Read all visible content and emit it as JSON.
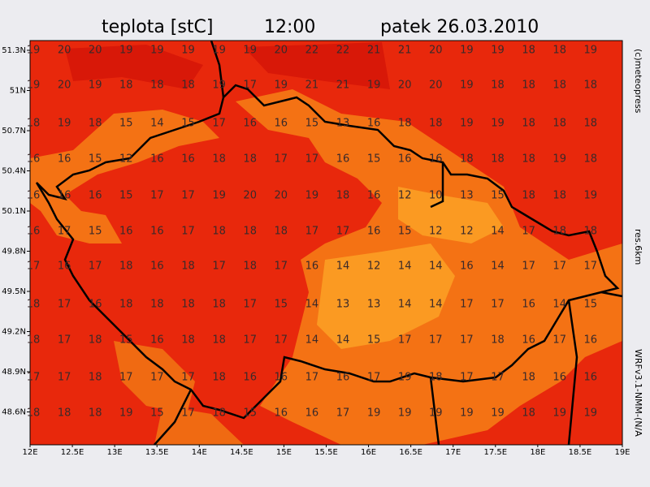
{
  "title": {
    "variable": "teplota [stC]",
    "time": "12:00",
    "date": "patek 26.03.2010"
  },
  "map": {
    "lat_labels": [
      "51.3N",
      "51N",
      "50.7N",
      "50.4N",
      "50.1N",
      "49.8N",
      "49.5N",
      "49.2N",
      "48.9N",
      "48.6N"
    ],
    "lon_labels": [
      "12E",
      "12.5E",
      "13E",
      "13.5E",
      "14E",
      "14.5E",
      "15E",
      "15.5E",
      "16E",
      "16.5E",
      "17E",
      "17.5E",
      "18E",
      "18.5E",
      "19E"
    ],
    "values": [
      [
        19,
        20,
        20,
        19,
        19,
        19,
        19,
        19,
        20,
        22,
        22,
        21,
        21,
        20,
        19,
        19,
        18,
        18,
        19
      ],
      [
        19,
        20,
        19,
        18,
        18,
        18,
        19,
        17,
        19,
        21,
        21,
        19,
        20,
        20,
        19,
        18,
        18,
        18,
        18
      ],
      [
        18,
        19,
        18,
        15,
        14,
        15,
        17,
        16,
        16,
        15,
        13,
        16,
        18,
        18,
        19,
        19,
        18,
        18,
        18
      ],
      [
        16,
        16,
        15,
        12,
        16,
        16,
        18,
        18,
        17,
        17,
        16,
        15,
        16,
        16,
        18,
        18,
        18,
        19,
        18
      ],
      [
        16,
        16,
        16,
        15,
        17,
        17,
        19,
        20,
        20,
        19,
        18,
        16,
        12,
        10,
        13,
        15,
        18,
        18,
        19
      ],
      [
        16,
        17,
        15,
        16,
        16,
        17,
        18,
        18,
        18,
        17,
        17,
        16,
        15,
        12,
        12,
        14,
        17,
        18,
        18
      ],
      [
        17,
        16,
        17,
        18,
        16,
        18,
        17,
        18,
        17,
        16,
        14,
        12,
        14,
        14,
        16,
        14,
        17,
        17,
        17
      ],
      [
        18,
        17,
        16,
        18,
        18,
        18,
        18,
        17,
        15,
        14,
        13,
        13,
        14,
        14,
        17,
        17,
        16,
        14,
        15
      ],
      [
        18,
        17,
        18,
        15,
        16,
        18,
        18,
        17,
        17,
        14,
        14,
        15,
        17,
        17,
        17,
        18,
        16,
        17,
        16
      ],
      [
        17,
        17,
        18,
        17,
        17,
        17,
        18,
        16,
        16,
        17,
        16,
        17,
        19,
        18,
        17,
        17,
        18,
        16,
        16
      ],
      [
        18,
        18,
        18,
        19,
        15,
        17,
        18,
        15,
        16,
        16,
        17,
        19,
        19,
        19,
        19,
        19,
        18,
        19,
        19
      ]
    ]
  },
  "side": {
    "copyright": "(c)meteopress",
    "resolution": "res.6km",
    "model": "WRFv3.1-NMM-(N/A"
  }
}
